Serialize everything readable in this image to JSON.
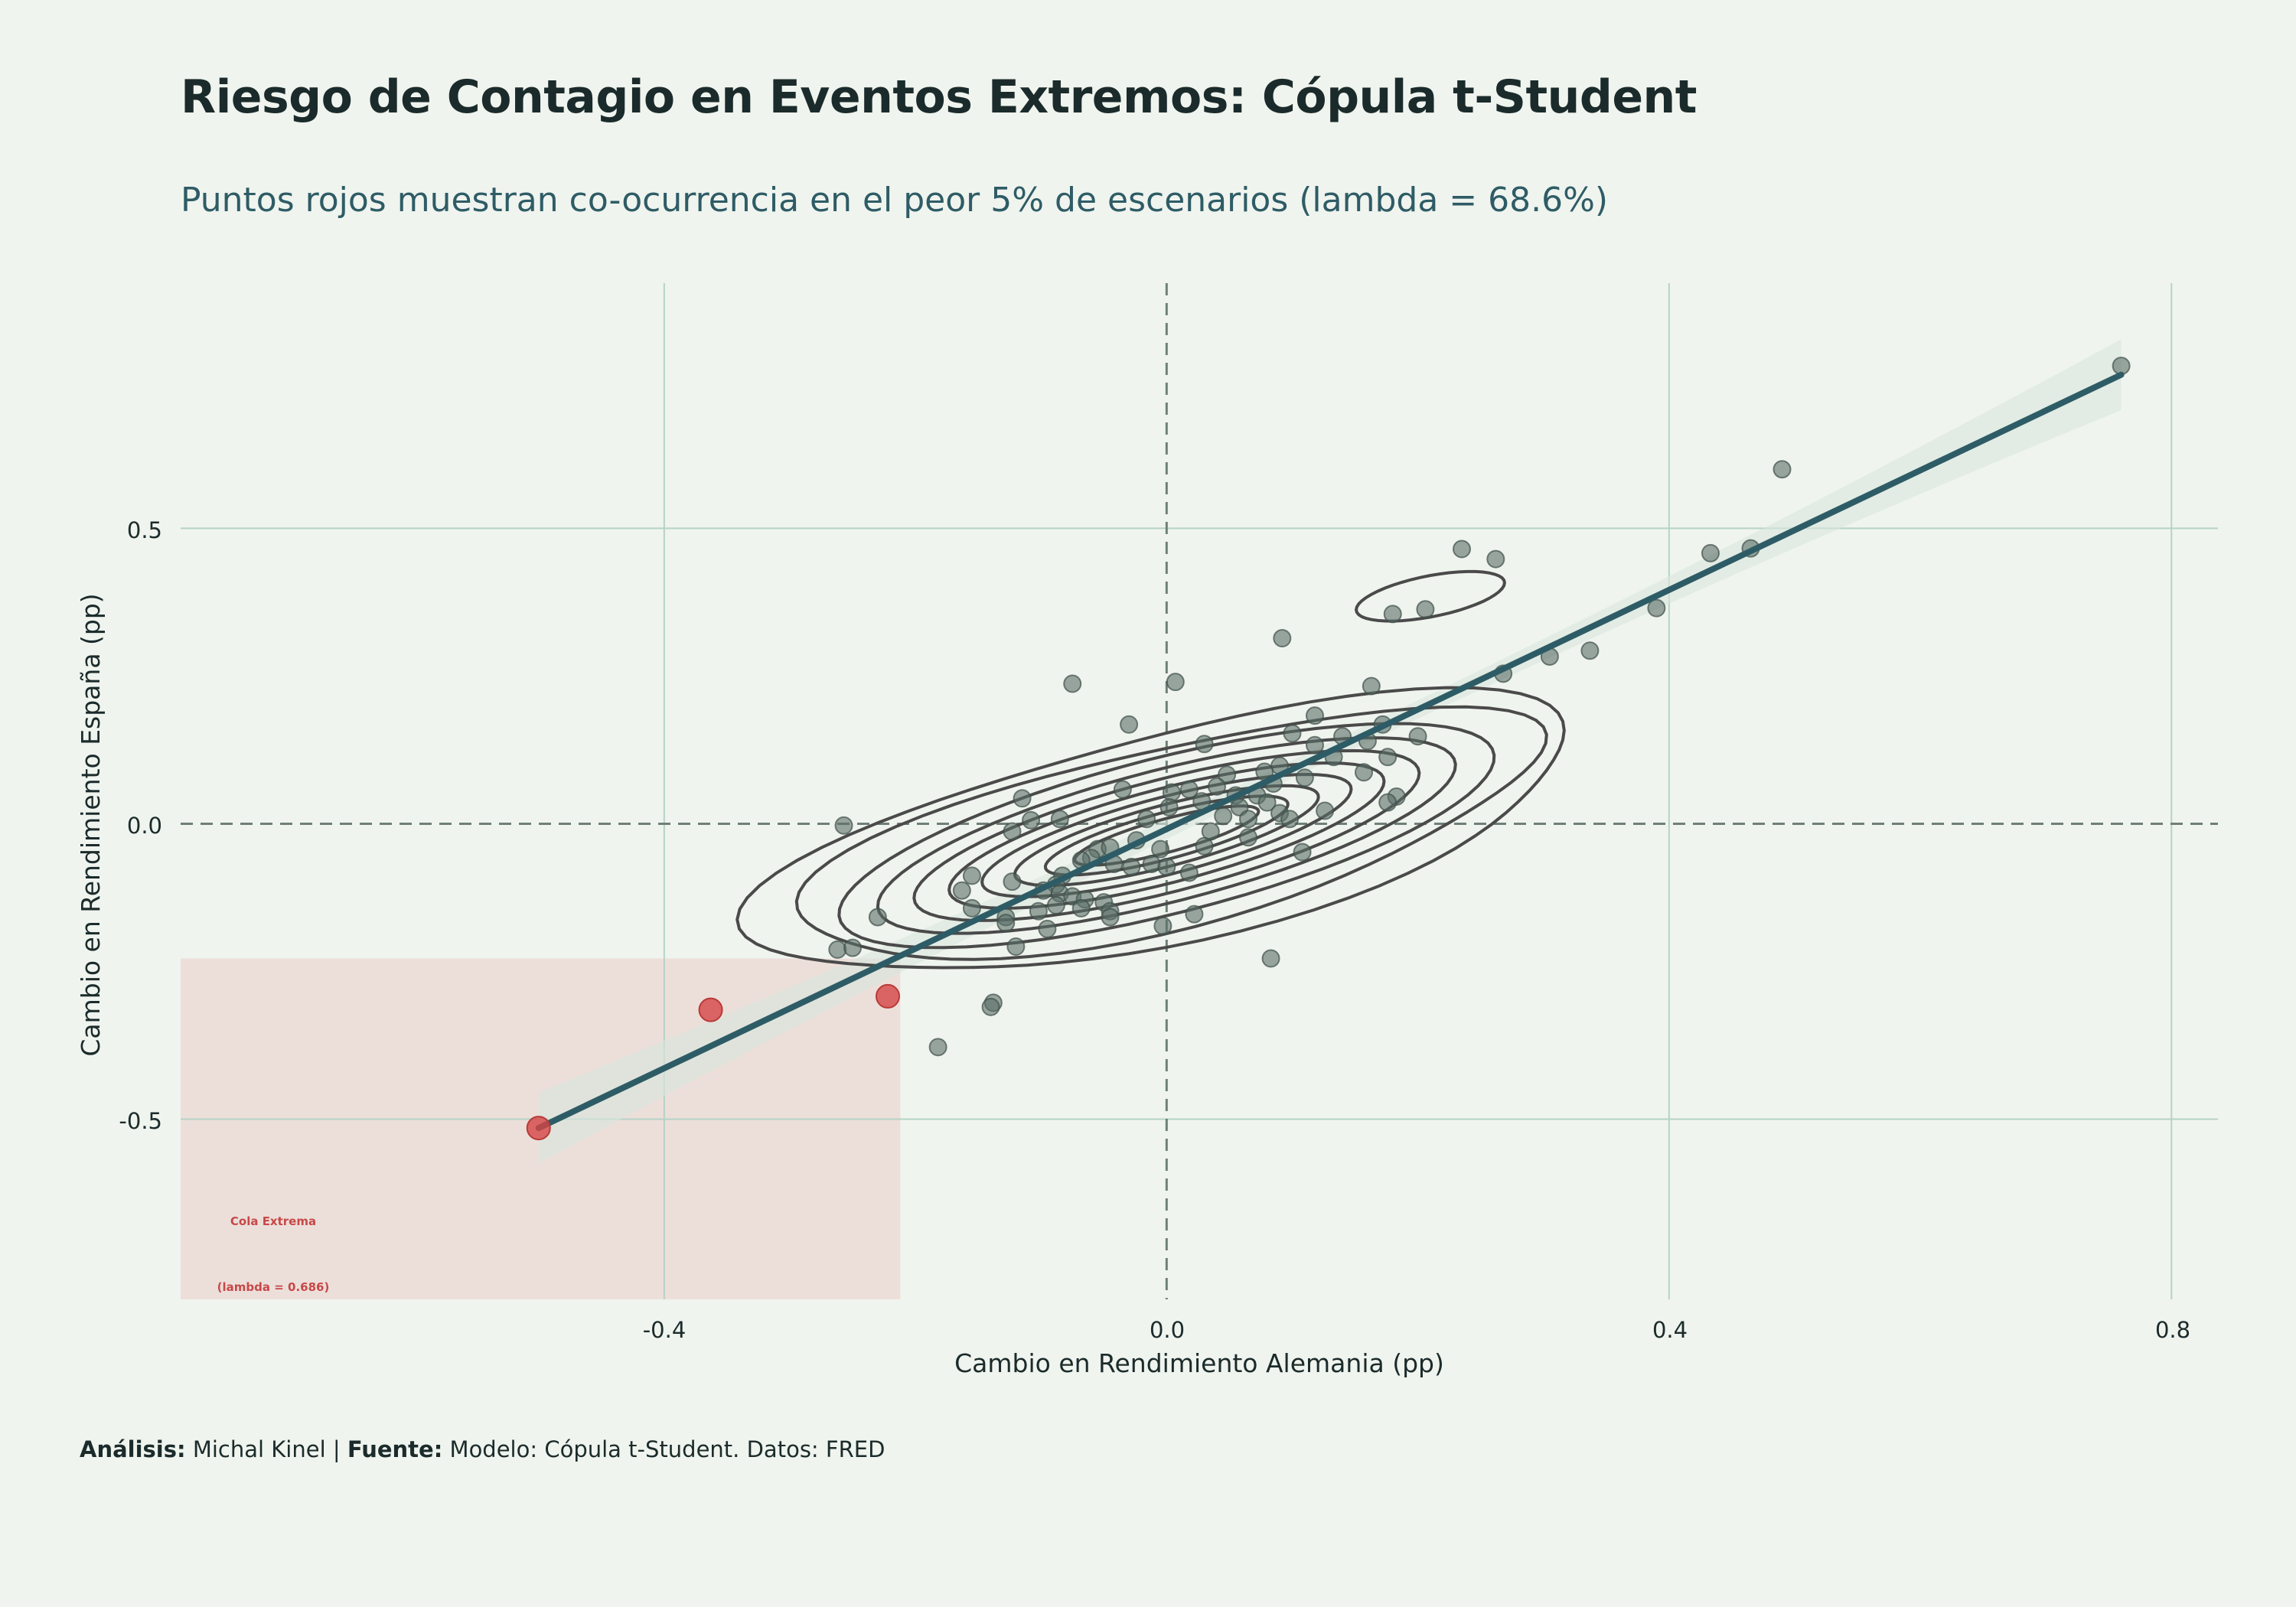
{
  "title": "Riesgo de Contagio en Eventos Extremos: Cópula t-Student",
  "subtitle": "Puntos rojos muestran co-ocurrencia en el peor 5% de escenarios (lambda = 68.6%)",
  "caption": {
    "analysis_label": "Análisis:",
    "analysis_value": "Michal Kinel",
    "separator": "|",
    "source_label": "Fuente:",
    "source_value": "Modelo: Cópula t-Student. Datos: FRED"
  },
  "colors": {
    "background": "#f0f4ee",
    "points": "#5a6e68",
    "tail_points": "#d64545",
    "regression": "#2e5c66",
    "contours": "#4a4a4a",
    "tail_region": "#ecdfda",
    "grid": "#b5d3c5"
  },
  "chart_data": {
    "type": "scatter",
    "xlabel": "Cambio en Rendimiento Alemania (pp)",
    "ylabel": "Cambio en Rendimiento España (pp)",
    "xlim": [
      -0.785,
      0.837
    ],
    "ylim": [
      -0.805,
      0.915
    ],
    "xticks": [
      -0.4,
      0.0,
      0.4,
      0.8
    ],
    "xtick_labels": [
      "-0.4",
      "0.0",
      "0.4",
      "0.8"
    ],
    "yticks": [
      -0.5,
      0.0,
      0.5
    ],
    "ytick_labels": [
      "-0.5",
      "0.0",
      "0.5"
    ],
    "grid": true,
    "reference_lines": {
      "x": 0.0,
      "y": 0.0
    },
    "regression": {
      "x": [
        -0.5,
        0.76
      ],
      "y": [
        -0.515,
        0.76
      ],
      "ci_halfwidth_ends": 0.06,
      "ci_halfwidth_center": 0.015
    },
    "tail_region": {
      "x": [
        -0.785,
        -0.212
      ],
      "y": [
        -0.805,
        -0.228
      ]
    },
    "annotations": [
      "Cola Extrema",
      "(lambda = 0.686)"
    ],
    "tail_points": [
      {
        "x": -0.5,
        "y": -0.515
      },
      {
        "x": -0.363,
        "y": -0.315
      },
      {
        "x": -0.222,
        "y": -0.292
      }
    ],
    "points": [
      {
        "x": 0.76,
        "y": 0.775
      },
      {
        "x": 0.49,
        "y": 0.6
      },
      {
        "x": 0.235,
        "y": 0.465
      },
      {
        "x": 0.262,
        "y": 0.448
      },
      {
        "x": 0.433,
        "y": 0.458
      },
      {
        "x": 0.465,
        "y": 0.466
      },
      {
        "x": 0.39,
        "y": 0.365
      },
      {
        "x": 0.18,
        "y": 0.355
      },
      {
        "x": 0.206,
        "y": 0.363
      },
      {
        "x": 0.092,
        "y": 0.314
      },
      {
        "x": 0.305,
        "y": 0.283
      },
      {
        "x": 0.337,
        "y": 0.293
      },
      {
        "x": 0.268,
        "y": 0.254
      },
      {
        "x": -0.075,
        "y": 0.237
      },
      {
        "x": 0.007,
        "y": 0.24
      },
      {
        "x": 0.163,
        "y": 0.233
      },
      {
        "x": -0.03,
        "y": 0.168
      },
      {
        "x": 0.118,
        "y": 0.183
      },
      {
        "x": 0.172,
        "y": 0.168
      },
      {
        "x": 0.1,
        "y": 0.153
      },
      {
        "x": 0.14,
        "y": 0.148
      },
      {
        "x": 0.2,
        "y": 0.148
      },
      {
        "x": 0.118,
        "y": 0.133
      },
      {
        "x": 0.16,
        "y": 0.14
      },
      {
        "x": 0.03,
        "y": 0.135
      },
      {
        "x": 0.133,
        "y": 0.113
      },
      {
        "x": 0.176,
        "y": 0.113
      },
      {
        "x": 0.09,
        "y": 0.098
      },
      {
        "x": 0.11,
        "y": 0.078
      },
      {
        "x": 0.157,
        "y": 0.087
      },
      {
        "x": 0.048,
        "y": 0.083
      },
      {
        "x": 0.078,
        "y": 0.088
      },
      {
        "x": 0.085,
        "y": 0.068
      },
      {
        "x": 0.04,
        "y": 0.063
      },
      {
        "x": 0.018,
        "y": 0.058
      },
      {
        "x": 0.004,
        "y": 0.053
      },
      {
        "x": -0.035,
        "y": 0.058
      },
      {
        "x": 0.055,
        "y": 0.048
      },
      {
        "x": 0.072,
        "y": 0.048
      },
      {
        "x": 0.183,
        "y": 0.046
      },
      {
        "x": 0.176,
        "y": 0.036
      },
      {
        "x": -0.115,
        "y": 0.043
      },
      {
        "x": 0.028,
        "y": 0.038
      },
      {
        "x": 0.058,
        "y": 0.028
      },
      {
        "x": 0.08,
        "y": 0.036
      },
      {
        "x": 0.09,
        "y": 0.018
      },
      {
        "x": 0.126,
        "y": 0.022
      },
      {
        "x": 0.002,
        "y": 0.028
      },
      {
        "x": -0.108,
        "y": 0.006
      },
      {
        "x": -0.085,
        "y": 0.008
      },
      {
        "x": -0.016,
        "y": 0.008
      },
      {
        "x": 0.045,
        "y": 0.013
      },
      {
        "x": 0.065,
        "y": 0.008
      },
      {
        "x": 0.098,
        "y": 0.008
      },
      {
        "x": -0.257,
        "y": -0.003
      },
      {
        "x": -0.123,
        "y": -0.013
      },
      {
        "x": 0.035,
        "y": -0.013
      },
      {
        "x": 0.065,
        "y": -0.023
      },
      {
        "x": -0.024,
        "y": -0.028
      },
      {
        "x": -0.055,
        "y": -0.043
      },
      {
        "x": -0.045,
        "y": -0.04
      },
      {
        "x": 0.03,
        "y": -0.038
      },
      {
        "x": -0.005,
        "y": -0.043
      },
      {
        "x": -0.06,
        "y": -0.058
      },
      {
        "x": -0.068,
        "y": -0.062
      },
      {
        "x": -0.042,
        "y": -0.068
      },
      {
        "x": -0.028,
        "y": -0.073
      },
      {
        "x": -0.012,
        "y": -0.068
      },
      {
        "x": 0.0,
        "y": -0.073
      },
      {
        "x": 0.018,
        "y": -0.083
      },
      {
        "x": 0.108,
        "y": -0.048
      },
      {
        "x": -0.083,
        "y": -0.088
      },
      {
        "x": -0.155,
        "y": -0.088
      },
      {
        "x": -0.123,
        "y": -0.098
      },
      {
        "x": -0.088,
        "y": -0.103
      },
      {
        "x": -0.085,
        "y": -0.118
      },
      {
        "x": -0.075,
        "y": -0.123
      },
      {
        "x": -0.098,
        "y": -0.113
      },
      {
        "x": -0.163,
        "y": -0.113
      },
      {
        "x": -0.065,
        "y": -0.128
      },
      {
        "x": -0.05,
        "y": -0.133
      },
      {
        "x": -0.088,
        "y": -0.138
      },
      {
        "x": -0.068,
        "y": -0.143
      },
      {
        "x": -0.045,
        "y": -0.148
      },
      {
        "x": -0.155,
        "y": -0.143
      },
      {
        "x": -0.102,
        "y": -0.148
      },
      {
        "x": -0.128,
        "y": -0.158
      },
      {
        "x": -0.128,
        "y": -0.168
      },
      {
        "x": -0.045,
        "y": -0.158
      },
      {
        "x": -0.095,
        "y": -0.178
      },
      {
        "x": 0.022,
        "y": -0.153
      },
      {
        "x": -0.003,
        "y": -0.173
      },
      {
        "x": -0.12,
        "y": -0.208
      },
      {
        "x": -0.23,
        "y": -0.158
      },
      {
        "x": -0.262,
        "y": -0.213
      },
      {
        "x": -0.25,
        "y": -0.21
      },
      {
        "x": 0.083,
        "y": -0.228
      },
      {
        "x": -0.138,
        "y": -0.303
      },
      {
        "x": -0.14,
        "y": -0.31
      },
      {
        "x": -0.182,
        "y": -0.378
      }
    ]
  }
}
